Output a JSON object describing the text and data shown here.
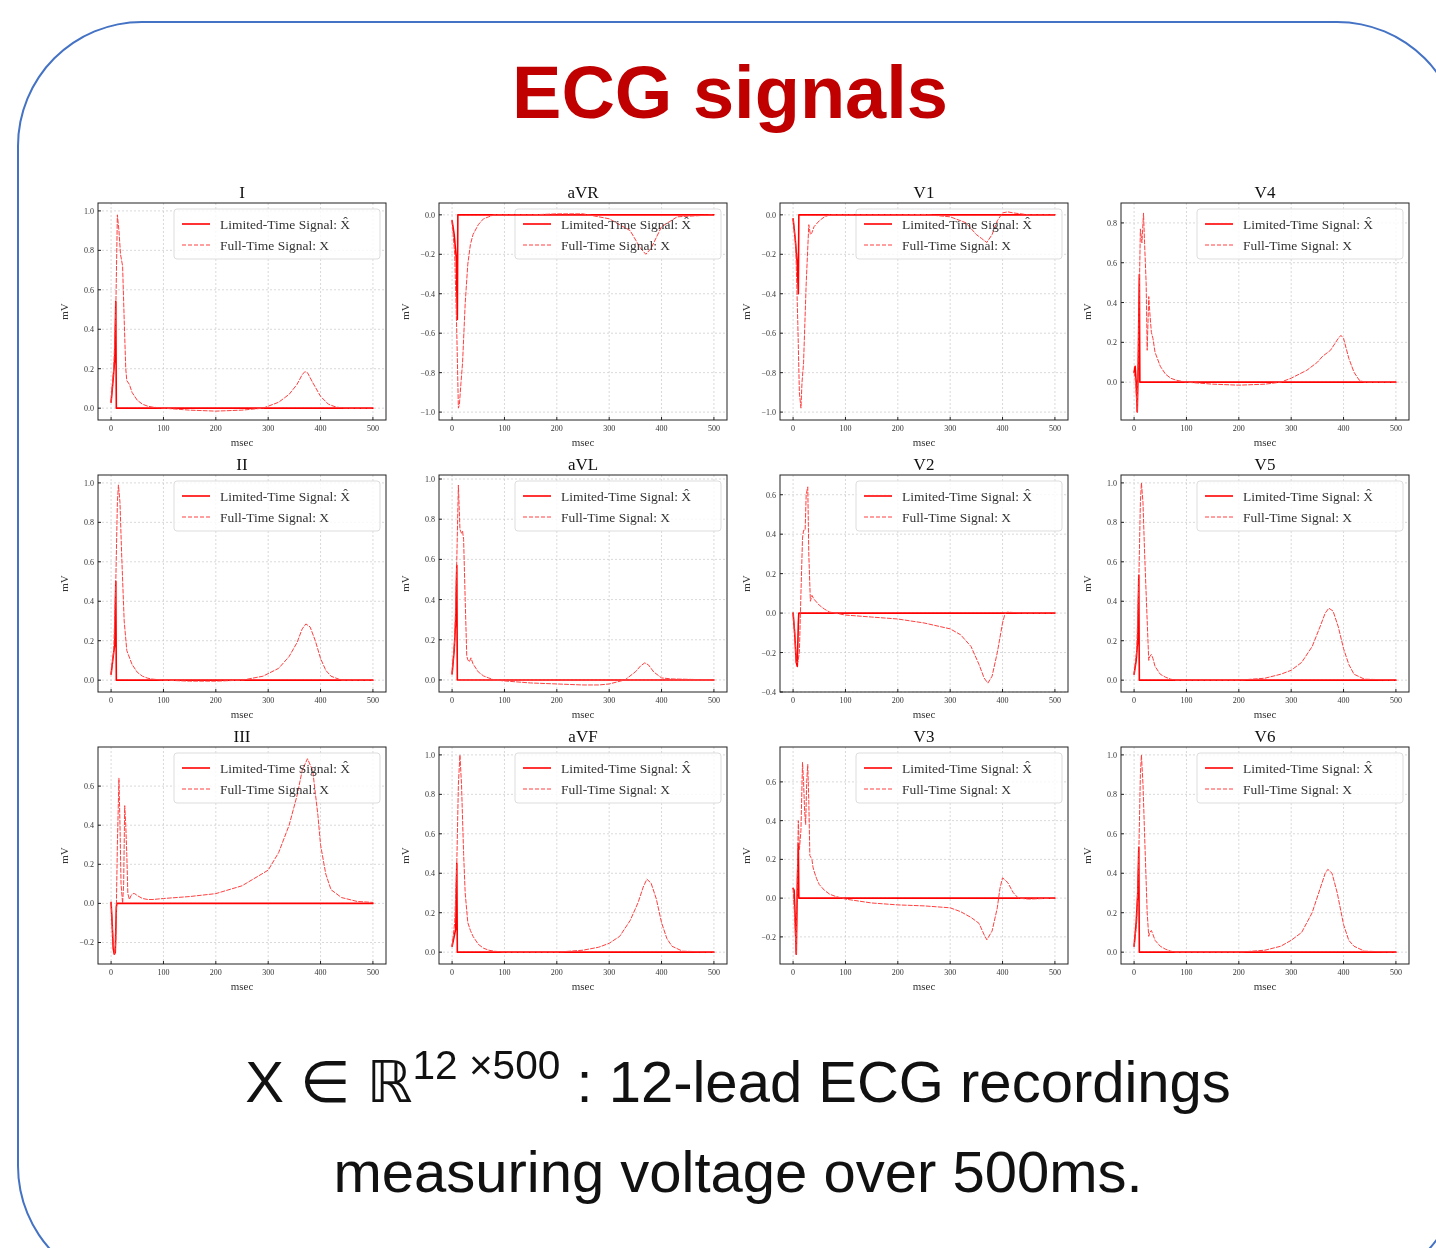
{
  "chart_data": [
    {
      "type": "other",
      "title": "ECG signals",
      "annotations": [
        "X ∈ ℝ$^{12 ×500}$ : 12-lead ECG recordings",
        "measuring voltage over 500ms."
      ]
    },
    {
      "type": "line",
      "title": "I",
      "xlabel": "msec",
      "ylabel": "mV",
      "xlim": [
        -25,
        525
      ],
      "xticks": [
        0,
        100,
        200,
        300,
        400,
        500
      ],
      "ylim": [
        -0.06,
        1.04
      ],
      "yticks": [
        {
          "value": 0,
          "label": "0.0"
        },
        {
          "value": 0.2,
          "label": "0.2"
        },
        {
          "value": 0.4,
          "label": "0.4"
        },
        {
          "value": 0.6,
          "label": "0.6"
        },
        {
          "value": 0.8,
          "label": "0.8"
        },
        {
          "value": 1,
          "label": "1.0"
        }
      ],
      "grid": true,
      "legend": "top right",
      "series": [
        {
          "name": "Limited-Time Signal: X̂",
          "color": "#ff0000",
          "line_style": "solid",
          "x": [
            0,
            4,
            7,
            9,
            10,
            500
          ],
          "values": [
            0.03,
            0.15,
            0.25,
            0.54,
            0,
            0
          ]
        },
        {
          "name": "Full-Time Signal: X",
          "color": "#ff4040",
          "line_style": "dashed",
          "x": [
            0,
            5,
            9,
            12,
            15,
            18,
            22,
            25,
            28,
            30,
            35,
            40,
            50,
            60,
            70,
            80,
            100,
            150,
            200,
            250,
            290,
            320,
            340,
            355,
            365,
            370,
            375,
            385,
            400,
            415,
            430,
            450,
            500
          ],
          "values": [
            0.03,
            0.2,
            0.5,
            0.98,
            0.9,
            0.78,
            0.72,
            0.45,
            0.2,
            0.14,
            0.12,
            0.08,
            0.04,
            0.02,
            0.01,
            0.005,
            0,
            -0.01,
            -0.015,
            -0.01,
            0,
            0.03,
            0.07,
            0.12,
            0.17,
            0.185,
            0.18,
            0.13,
            0.06,
            0.02,
            0.005,
            0,
            0
          ]
        }
      ]
    },
    {
      "type": "line",
      "title": "aVR",
      "xlabel": "msec",
      "ylabel": "mV",
      "xlim": [
        -25,
        525
      ],
      "xticks": [
        0,
        100,
        200,
        300,
        400,
        500
      ],
      "ylim": [
        -1.04,
        0.06
      ],
      "yticks": [
        {
          "value": -1,
          "label": "−1.0"
        },
        {
          "value": -0.8,
          "label": "−0.8"
        },
        {
          "value": -0.6,
          "label": "−0.6"
        },
        {
          "value": -0.4,
          "label": "−0.4"
        },
        {
          "value": -0.2,
          "label": "−0.2"
        },
        {
          "value": 0,
          "label": "0.0"
        }
      ],
      "grid": true,
      "legend": "top right",
      "series": [
        {
          "name": "Limited-Time Signal: X̂",
          "color": "#ff0000",
          "line_style": "solid",
          "x": [
            0,
            4,
            8,
            10,
            11,
            500
          ],
          "values": [
            -0.03,
            -0.1,
            -0.22,
            -0.53,
            0,
            0
          ]
        },
        {
          "name": "Full-Time Signal: X",
          "color": "#ff4040",
          "line_style": "dashed",
          "x": [
            0,
            5,
            9,
            12,
            14,
            17,
            20,
            25,
            30,
            35,
            40,
            50,
            60,
            70,
            80,
            100,
            150,
            200,
            250,
            300,
            340,
            360,
            370,
            380,
            400,
            430,
            500
          ],
          "values": [
            -0.03,
            -0.2,
            -0.6,
            -0.98,
            -0.96,
            -0.85,
            -0.75,
            -0.45,
            -0.25,
            -0.15,
            -0.1,
            -0.05,
            -0.02,
            -0.01,
            0,
            0,
            0,
            0.005,
            0.005,
            -0.02,
            -0.08,
            -0.17,
            -0.2,
            -0.17,
            -0.06,
            -0.01,
            0
          ]
        }
      ]
    },
    {
      "type": "line",
      "title": "V1",
      "xlabel": "msec",
      "ylabel": "mV",
      "xlim": [
        -25,
        525
      ],
      "xticks": [
        0,
        100,
        200,
        300,
        400,
        500
      ],
      "ylim": [
        -1.04,
        0.06
      ],
      "yticks": [
        {
          "value": -1,
          "label": "−1.0"
        },
        {
          "value": -0.8,
          "label": "−0.8"
        },
        {
          "value": -0.6,
          "label": "−0.6"
        },
        {
          "value": -0.4,
          "label": "−0.4"
        },
        {
          "value": -0.2,
          "label": "−0.2"
        },
        {
          "value": 0,
          "label": "0.0"
        }
      ],
      "grid": true,
      "legend": "top right",
      "series": [
        {
          "name": "Limited-Time Signal: X̂",
          "color": "#ff0000",
          "line_style": "solid",
          "x": [
            0,
            4,
            8,
            10,
            11,
            500
          ],
          "values": [
            -0.02,
            -0.12,
            -0.25,
            -0.4,
            0,
            0
          ]
        },
        {
          "name": "Full-Time Signal: X",
          "color": "#ff4040",
          "line_style": "dashed",
          "x": [
            0,
            5,
            9,
            12,
            15,
            17,
            20,
            25,
            30,
            33,
            36,
            40,
            50,
            60,
            70,
            80,
            100,
            150,
            200,
            250,
            300,
            330,
            350,
            360,
            370,
            380,
            390,
            400,
            410,
            420,
            450,
            500
          ],
          "values": [
            -0.02,
            -0.15,
            -0.55,
            -0.9,
            -0.98,
            -0.85,
            -0.75,
            -0.35,
            -0.05,
            -0.1,
            -0.09,
            -0.06,
            -0.03,
            -0.01,
            0,
            0,
            0,
            0,
            0,
            0.002,
            -0.01,
            -0.04,
            -0.1,
            -0.12,
            -0.14,
            -0.1,
            -0.03,
            0.01,
            0.015,
            0.01,
            0,
            0
          ]
        }
      ]
    },
    {
      "type": "line",
      "title": "V4",
      "xlabel": "msec",
      "ylabel": "mV",
      "xlim": [
        -25,
        525
      ],
      "xticks": [
        0,
        100,
        200,
        300,
        400,
        500
      ],
      "ylim": [
        -0.19,
        0.9
      ],
      "yticks": [
        {
          "value": 0,
          "label": "0.0"
        },
        {
          "value": 0.2,
          "label": "0.2"
        },
        {
          "value": 0.4,
          "label": "0.4"
        },
        {
          "value": 0.6,
          "label": "0.6"
        },
        {
          "value": 0.8,
          "label": "0.8"
        }
      ],
      "grid": true,
      "legend": "top right",
      "series": [
        {
          "name": "Limited-Time Signal: X̂",
          "color": "#ff0000",
          "line_style": "solid",
          "x": [
            0,
            2,
            4,
            6,
            8,
            10,
            11,
            500
          ],
          "values": [
            0.05,
            0.08,
            0,
            -0.15,
            0.1,
            0.54,
            0,
            0
          ]
        },
        {
          "name": "Full-Time Signal: X",
          "color": "#ff4040",
          "line_style": "dashed",
          "x": [
            0,
            3,
            6,
            9,
            12,
            15,
            18,
            20,
            23,
            25,
            28,
            30,
            33,
            36,
            40,
            50,
            60,
            70,
            80,
            100,
            150,
            200,
            250,
            280,
            300,
            330,
            350,
            360,
            375,
            390,
            395,
            400,
            410,
            420,
            430,
            440,
            460,
            500
          ],
          "values": [
            0.05,
            0,
            -0.15,
            0.3,
            0.77,
            0.7,
            0.85,
            0.7,
            0.5,
            0.16,
            0.43,
            0.35,
            0.25,
            0.22,
            0.15,
            0.08,
            0.04,
            0.02,
            0.01,
            0,
            -0.01,
            -0.015,
            -0.01,
            0,
            0.02,
            0.06,
            0.1,
            0.13,
            0.16,
            0.22,
            0.235,
            0.22,
            0.12,
            0.05,
            0.01,
            0,
            0,
            0
          ]
        }
      ]
    },
    {
      "type": "line",
      "title": "II",
      "xlabel": "msec",
      "ylabel": "mV",
      "xlim": [
        -25,
        525
      ],
      "xticks": [
        0,
        100,
        200,
        300,
        400,
        500
      ],
      "ylim": [
        -0.06,
        1.04
      ],
      "yticks": [
        {
          "value": 0,
          "label": "0.0"
        },
        {
          "value": 0.2,
          "label": "0.2"
        },
        {
          "value": 0.4,
          "label": "0.4"
        },
        {
          "value": 0.6,
          "label": "0.6"
        },
        {
          "value": 0.8,
          "label": "0.8"
        },
        {
          "value": 1,
          "label": "1.0"
        }
      ],
      "grid": true,
      "legend": "top right",
      "series": [
        {
          "name": "Limited-Time Signal: X̂",
          "color": "#ff0000",
          "line_style": "solid",
          "x": [
            0,
            4,
            7,
            9,
            10,
            500
          ],
          "values": [
            0.03,
            0.12,
            0.18,
            0.5,
            0,
            0
          ]
        },
        {
          "name": "Full-Time Signal: X",
          "color": "#ff4040",
          "line_style": "dashed",
          "x": [
            0,
            5,
            9,
            12,
            14,
            17,
            20,
            25,
            30,
            40,
            50,
            60,
            70,
            80,
            100,
            150,
            200,
            250,
            290,
            320,
            340,
            355,
            365,
            372,
            380,
            390,
            400,
            410,
            420,
            440,
            500
          ],
          "values": [
            0.03,
            0.15,
            0.5,
            0.9,
            0.99,
            0.9,
            0.65,
            0.3,
            0.15,
            0.08,
            0.04,
            0.02,
            0.01,
            0.005,
            0,
            -0.005,
            -0.005,
            0,
            0.02,
            0.06,
            0.12,
            0.19,
            0.26,
            0.285,
            0.27,
            0.2,
            0.11,
            0.05,
            0.02,
            0,
            0
          ]
        }
      ]
    },
    {
      "type": "line",
      "title": "aVL",
      "xlabel": "msec",
      "ylabel": "mV",
      "xlim": [
        -25,
        525
      ],
      "xticks": [
        0,
        100,
        200,
        300,
        400,
        500
      ],
      "ylim": [
        -0.06,
        1.02
      ],
      "yticks": [
        {
          "value": 0,
          "label": "0.0"
        },
        {
          "value": 0.2,
          "label": "0.2"
        },
        {
          "value": 0.4,
          "label": "0.4"
        },
        {
          "value": 0.6,
          "label": "0.6"
        },
        {
          "value": 0.8,
          "label": "0.8"
        },
        {
          "value": 1,
          "label": "1.0"
        }
      ],
      "grid": true,
      "legend": "top right",
      "series": [
        {
          "name": "Limited-Time Signal: X̂",
          "color": "#ff0000",
          "line_style": "solid",
          "x": [
            0,
            4,
            7,
            9,
            10,
            500
          ],
          "values": [
            0.03,
            0.15,
            0.3,
            0.57,
            0,
            0
          ]
        },
        {
          "name": "Full-Time Signal: X",
          "color": "#ff4040",
          "line_style": "dashed",
          "x": [
            0,
            5,
            9,
            12,
            15,
            18,
            20,
            22,
            25,
            28,
            30,
            33,
            36,
            40,
            50,
            60,
            70,
            80,
            100,
            150,
            200,
            250,
            280,
            300,
            330,
            350,
            360,
            368,
            375,
            385,
            400,
            420,
            500
          ],
          "values": [
            0.03,
            0.2,
            0.6,
            0.97,
            0.75,
            0.73,
            0.74,
            0.7,
            0.4,
            0.12,
            0.1,
            0.09,
            0.11,
            0.08,
            0.04,
            0.02,
            0.01,
            0,
            -0.005,
            -0.015,
            -0.02,
            -0.025,
            -0.025,
            -0.02,
            0,
            0.04,
            0.07,
            0.085,
            0.075,
            0.04,
            0.01,
            0.005,
            0
          ]
        }
      ]
    },
    {
      "type": "line",
      "title": "V2",
      "xlabel": "msec",
      "ylabel": "mV",
      "xlim": [
        -25,
        525
      ],
      "xticks": [
        0,
        100,
        200,
        300,
        400,
        500
      ],
      "ylim": [
        -0.4,
        0.7
      ],
      "yticks": [
        {
          "value": -0.4,
          "label": "−0.4"
        },
        {
          "value": -0.2,
          "label": "−0.2"
        },
        {
          "value": 0,
          "label": "0.0"
        },
        {
          "value": 0.2,
          "label": "0.2"
        },
        {
          "value": 0.4,
          "label": "0.4"
        },
        {
          "value": 0.6,
          "label": "0.6"
        }
      ],
      "grid": true,
      "legend": "top right",
      "series": [
        {
          "name": "Limited-Time Signal: X̂",
          "color": "#ff0000",
          "line_style": "solid",
          "x": [
            0,
            3,
            6,
            8,
            10,
            11,
            500
          ],
          "values": [
            0,
            -0.1,
            -0.25,
            -0.27,
            -0.05,
            0,
            0
          ]
        },
        {
          "name": "Full-Time Signal: X",
          "color": "#ff4040",
          "line_style": "dashed",
          "x": [
            0,
            3,
            6,
            9,
            12,
            15,
            18,
            20,
            23,
            25,
            28,
            30,
            33,
            36,
            40,
            50,
            60,
            70,
            80,
            100,
            150,
            200,
            250,
            300,
            320,
            340,
            355,
            365,
            372,
            380,
            390,
            400,
            405,
            410,
            420,
            440,
            500
          ],
          "values": [
            0,
            -0.1,
            -0.25,
            -0.25,
            -0.2,
            0.1,
            0.38,
            0.42,
            0.42,
            0.6,
            0.64,
            0.3,
            0.06,
            0.09,
            0.07,
            0.04,
            0.02,
            0.005,
            0,
            -0.01,
            -0.02,
            -0.03,
            -0.05,
            -0.08,
            -0.11,
            -0.17,
            -0.26,
            -0.33,
            -0.355,
            -0.32,
            -0.2,
            -0.05,
            0,
            0.005,
            0.003,
            0,
            0
          ]
        }
      ]
    },
    {
      "type": "line",
      "title": "V5",
      "xlabel": "msec",
      "ylabel": "mV",
      "xlim": [
        -25,
        525
      ],
      "xticks": [
        0,
        100,
        200,
        300,
        400,
        500
      ],
      "ylim": [
        -0.06,
        1.04
      ],
      "yticks": [
        {
          "value": 0,
          "label": "0.0"
        },
        {
          "value": 0.2,
          "label": "0.2"
        },
        {
          "value": 0.4,
          "label": "0.4"
        },
        {
          "value": 0.6,
          "label": "0.6"
        },
        {
          "value": 0.8,
          "label": "0.8"
        },
        {
          "value": 1,
          "label": "1.0"
        }
      ],
      "grid": true,
      "legend": "top right",
      "series": [
        {
          "name": "Limited-Time Signal: X̂",
          "color": "#ff0000",
          "line_style": "solid",
          "x": [
            0,
            4,
            7,
            9,
            10,
            500
          ],
          "values": [
            0.03,
            0.1,
            0.2,
            0.53,
            0,
            0
          ]
        },
        {
          "name": "Full-Time Signal: X",
          "color": "#ff4040",
          "line_style": "dashed",
          "x": [
            0,
            5,
            9,
            12,
            14,
            17,
            20,
            25,
            28,
            30,
            33,
            36,
            40,
            50,
            60,
            70,
            80,
            100,
            150,
            200,
            250,
            280,
            300,
            320,
            340,
            355,
            365,
            372,
            380,
            390,
            400,
            410,
            420,
            440,
            500
          ],
          "values": [
            0.03,
            0.15,
            0.5,
            0.9,
            1,
            0.9,
            0.65,
            0.3,
            0.1,
            0.12,
            0.13,
            0.11,
            0.07,
            0.03,
            0.015,
            0.005,
            0,
            0,
            0,
            0,
            0.01,
            0.03,
            0.05,
            0.09,
            0.17,
            0.27,
            0.34,
            0.365,
            0.35,
            0.27,
            0.16,
            0.08,
            0.03,
            0.005,
            0
          ]
        }
      ]
    },
    {
      "type": "line",
      "title": "III",
      "xlabel": "msec",
      "ylabel": "mV",
      "xlim": [
        -25,
        525
      ],
      "xticks": [
        0,
        100,
        200,
        300,
        400,
        500
      ],
      "ylim": [
        -0.31,
        0.8
      ],
      "yticks": [
        {
          "value": -0.2,
          "label": "−0.2"
        },
        {
          "value": 0,
          "label": "0.0"
        },
        {
          "value": 0.2,
          "label": "0.2"
        },
        {
          "value": 0.4,
          "label": "0.4"
        },
        {
          "value": 0.6,
          "label": "0.6"
        }
      ],
      "grid": true,
      "legend": "top right",
      "series": [
        {
          "name": "Limited-Time Signal: X̂",
          "color": "#ff0000",
          "line_style": "solid",
          "x": [
            0,
            2,
            4,
            6,
            8,
            10,
            11,
            500
          ],
          "values": [
            0.005,
            -0.1,
            -0.23,
            -0.26,
            -0.25,
            -0.02,
            0,
            0
          ]
        },
        {
          "name": "Full-Time Signal: X",
          "color": "#ff4040",
          "line_style": "dashed",
          "x": [
            0,
            4,
            7,
            9,
            12,
            15,
            17,
            19,
            22,
            24,
            26,
            28,
            30,
            32,
            35,
            38,
            42,
            45,
            50,
            60,
            70,
            80,
            100,
            150,
            200,
            250,
            300,
            320,
            340,
            355,
            365,
            375,
            385,
            395,
            400,
            410,
            420,
            440,
            470,
            500
          ],
          "values": [
            0.005,
            -0.2,
            -0.26,
            -0.2,
            0.3,
            0.64,
            0.4,
            0.1,
            0,
            0.1,
            0.5,
            0.4,
            0.25,
            0.05,
            0.02,
            0.04,
            0.05,
            0.05,
            0.04,
            0.025,
            0.02,
            0.02,
            0.025,
            0.035,
            0.05,
            0.09,
            0.17,
            0.26,
            0.4,
            0.55,
            0.68,
            0.74,
            0.68,
            0.45,
            0.3,
            0.15,
            0.07,
            0.03,
            0.01,
            0.005
          ]
        }
      ]
    },
    {
      "type": "line",
      "title": "aVF",
      "xlabel": "msec",
      "ylabel": "mV",
      "xlim": [
        -25,
        525
      ],
      "xticks": [
        0,
        100,
        200,
        300,
        400,
        500
      ],
      "ylim": [
        -0.06,
        1.04
      ],
      "yticks": [
        {
          "value": 0,
          "label": "0.0"
        },
        {
          "value": 0.2,
          "label": "0.2"
        },
        {
          "value": 0.4,
          "label": "0.4"
        },
        {
          "value": 0.6,
          "label": "0.6"
        },
        {
          "value": 0.8,
          "label": "0.8"
        },
        {
          "value": 1,
          "label": "1.0"
        }
      ],
      "grid": true,
      "legend": "top right",
      "series": [
        {
          "name": "Limited-Time Signal: X̂",
          "color": "#ff0000",
          "line_style": "solid",
          "x": [
            0,
            4,
            7,
            9,
            10,
            500
          ],
          "values": [
            0.03,
            0.08,
            0.12,
            0.45,
            0,
            0
          ]
        },
        {
          "name": "Full-Time Signal: X",
          "color": "#ff4040",
          "line_style": "dashed",
          "x": [
            0,
            5,
            9,
            12,
            15,
            18,
            22,
            25,
            30,
            35,
            40,
            50,
            60,
            70,
            80,
            100,
            150,
            200,
            250,
            280,
            300,
            320,
            340,
            355,
            365,
            372,
            380,
            390,
            400,
            410,
            420,
            440,
            500
          ],
          "values": [
            0.03,
            0.15,
            0.45,
            0.85,
            1,
            0.85,
            0.5,
            0.3,
            0.15,
            0.11,
            0.08,
            0.04,
            0.02,
            0.01,
            0.005,
            0,
            0,
            0,
            0.01,
            0.025,
            0.045,
            0.08,
            0.16,
            0.25,
            0.33,
            0.37,
            0.35,
            0.27,
            0.15,
            0.07,
            0.03,
            0.005,
            0
          ]
        }
      ]
    },
    {
      "type": "line",
      "title": "V3",
      "xlabel": "msec",
      "ylabel": "mV",
      "xlim": [
        -25,
        525
      ],
      "xticks": [
        0,
        100,
        200,
        300,
        400,
        500
      ],
      "ylim": [
        -0.34,
        0.78
      ],
      "yticks": [
        {
          "value": -0.2,
          "label": "−0.2"
        },
        {
          "value": 0,
          "label": "0.0"
        },
        {
          "value": 0.2,
          "label": "0.2"
        },
        {
          "value": 0.4,
          "label": "0.4"
        },
        {
          "value": 0.6,
          "label": "0.6"
        }
      ],
      "grid": true,
      "legend": "top right",
      "series": [
        {
          "name": "Limited-Time Signal: X̂",
          "color": "#ff0000",
          "line_style": "solid",
          "x": [
            0,
            2,
            4,
            6,
            8,
            10,
            11,
            500
          ],
          "values": [
            0.05,
            0.04,
            -0.1,
            -0.29,
            0.05,
            0.28,
            0,
            0
          ]
        },
        {
          "name": "Full-Time Signal: X",
          "color": "#ff4040",
          "line_style": "dashed",
          "x": [
            0,
            3,
            6,
            8,
            10,
            12,
            15,
            18,
            20,
            22,
            24,
            26,
            28,
            30,
            32,
            34,
            36,
            38,
            40,
            45,
            50,
            60,
            70,
            80,
            100,
            150,
            200,
            250,
            300,
            320,
            340,
            355,
            365,
            370,
            380,
            390,
            395,
            400,
            410,
            420,
            430,
            450,
            500
          ],
          "values": [
            0.05,
            -0.1,
            -0.29,
            0.1,
            0.4,
            0.25,
            0.35,
            0.7,
            0.6,
            0.45,
            0.38,
            0.6,
            0.69,
            0.5,
            0.22,
            0.21,
            0.2,
            0.16,
            0.14,
            0.1,
            0.07,
            0.04,
            0.02,
            0.01,
            -0.005,
            -0.025,
            -0.035,
            -0.04,
            -0.05,
            -0.07,
            -0.1,
            -0.13,
            -0.19,
            -0.215,
            -0.17,
            -0.05,
            0.05,
            0.105,
            0.08,
            0.03,
            0,
            -0.005,
            0
          ]
        }
      ]
    },
    {
      "type": "line",
      "title": "V6",
      "xlabel": "msec",
      "ylabel": "mV",
      "xlim": [
        -25,
        525
      ],
      "xticks": [
        0,
        100,
        200,
        300,
        400,
        500
      ],
      "ylim": [
        -0.06,
        1.04
      ],
      "yticks": [
        {
          "value": 0,
          "label": "0.0"
        },
        {
          "value": 0.2,
          "label": "0.2"
        },
        {
          "value": 0.4,
          "label": "0.4"
        },
        {
          "value": 0.6,
          "label": "0.6"
        },
        {
          "value": 0.8,
          "label": "0.8"
        },
        {
          "value": 1,
          "label": "1.0"
        }
      ],
      "grid": true,
      "legend": "top right",
      "series": [
        {
          "name": "Limited-Time Signal: X̂",
          "color": "#ff0000",
          "line_style": "solid",
          "x": [
            0,
            4,
            7,
            9,
            10,
            500
          ],
          "values": [
            0.03,
            0.15,
            0.3,
            0.53,
            0,
            0
          ]
        },
        {
          "name": "Full-Time Signal: X",
          "color": "#ff4040",
          "line_style": "dashed",
          "x": [
            0,
            5,
            9,
            12,
            14,
            17,
            20,
            25,
            28,
            30,
            33,
            36,
            40,
            50,
            60,
            70,
            80,
            100,
            150,
            200,
            250,
            280,
            300,
            320,
            340,
            355,
            365,
            370,
            378,
            388,
            400,
            410,
            420,
            440,
            500
          ],
          "values": [
            0.03,
            0.15,
            0.5,
            0.9,
            1,
            0.85,
            0.6,
            0.2,
            0.08,
            0.1,
            0.11,
            0.09,
            0.06,
            0.03,
            0.015,
            0.005,
            0,
            0,
            0,
            0,
            0.01,
            0.03,
            0.06,
            0.1,
            0.2,
            0.32,
            0.4,
            0.42,
            0.4,
            0.3,
            0.14,
            0.06,
            0.03,
            0.005,
            0
          ]
        }
      ]
    }
  ]
}
